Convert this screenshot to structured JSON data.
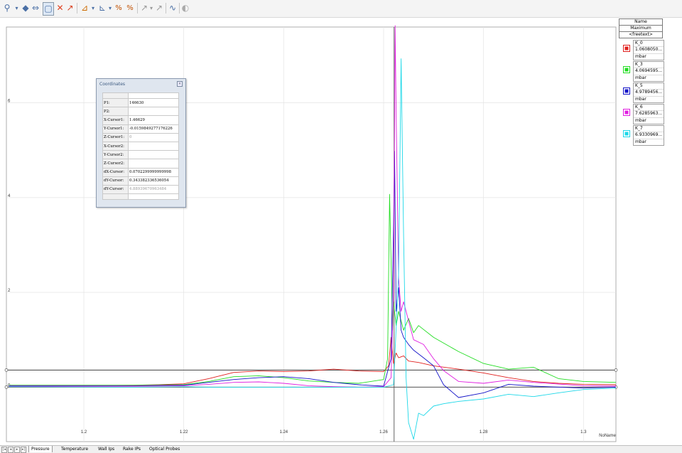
{
  "toolbar": {
    "buttons": [
      "zoom-tool",
      "pan-left",
      "pan-right",
      "zoom-box",
      "delete-cursor",
      "cursor-mode",
      "measure",
      "axis-settings",
      "scale-x",
      "scale-y",
      "fit",
      "marker",
      "marker-add",
      "smooth",
      "export"
    ]
  },
  "coordinates": {
    "title": "Coordinates",
    "rows": [
      {
        "k": "P1:",
        "v": "146630"
      },
      {
        "k": "P2:",
        "v": ""
      },
      {
        "k": "X-Cursor1:",
        "v": "1.46629"
      },
      {
        "k": "Y-Cursor1:",
        "v": "-0.0159849277176226"
      },
      {
        "k": "Z-Cursor1:",
        "v": "0"
      },
      {
        "k": "X-Cursor2:",
        "v": ""
      },
      {
        "k": "Y-Cursor2:",
        "v": ""
      },
      {
        "k": "Z-Cursor2:",
        "v": ""
      },
      {
        "k": "dX-Cursor:",
        "v": "0.0702299999999998"
      },
      {
        "k": "dY-Cursor:",
        "v": "0.343382336536054"
      },
      {
        "k": "dY-Cursor:",
        "v": "4.88939670963484"
      }
    ]
  },
  "legend": {
    "header": [
      "Name",
      "Maximum",
      "<freetext>"
    ],
    "entries": [
      {
        "name": "K_0",
        "value": "1.0608050...",
        "unit": "mbar",
        "color": "#e0201e"
      },
      {
        "name": "K_3",
        "value": "4.0694595...",
        "unit": "mbar",
        "color": "#22dd22"
      },
      {
        "name": "K_5",
        "value": "4.9789456...",
        "unit": "mbar",
        "color": "#1414c8"
      },
      {
        "name": "K_6",
        "value": "7.6285963...",
        "unit": "mbar",
        "color": "#e01ee0"
      },
      {
        "name": "K_7",
        "value": "6.9330969...",
        "unit": "mbar",
        "color": "#1ed8e8"
      }
    ]
  },
  "statusbar": {
    "tabs": [
      "Pressure",
      "Temperature",
      "Wall Ips",
      "Rake IPs",
      "Optical Probes"
    ],
    "active": "Pressure"
  },
  "chart_data": {
    "type": "line",
    "xlabel": "NoName",
    "x_ticks": [
      "1.2",
      "1.22",
      "1.24",
      "1.26",
      "1.28",
      "1.3"
    ],
    "y_ticks": [
      "0",
      "2",
      "4",
      "6"
    ],
    "xlim": [
      1.1845,
      1.3065
    ],
    "ylim": [
      -1.15,
      7.6
    ],
    "grid": true,
    "cursor_lines": [
      0.36,
      0.0
    ],
    "cursor_x": 1.2621,
    "series": [
      {
        "name": "K_0",
        "color": "#e0201e",
        "x": [
          1.185,
          1.2,
          1.21,
          1.215,
          1.22,
          1.225,
          1.23,
          1.235,
          1.24,
          1.245,
          1.25,
          1.255,
          1.26,
          1.261,
          1.2615,
          1.262,
          1.2625,
          1.263,
          1.264,
          1.265,
          1.267,
          1.27,
          1.275,
          1.28,
          1.285,
          1.29,
          1.295,
          1.3,
          1.3065
        ],
        "y": [
          0.03,
          0.03,
          0.04,
          0.05,
          0.07,
          0.18,
          0.31,
          0.34,
          0.33,
          0.34,
          0.38,
          0.34,
          0.33,
          0.45,
          1.05,
          0.5,
          0.72,
          0.62,
          0.66,
          0.55,
          0.52,
          0.45,
          0.38,
          0.3,
          0.2,
          0.12,
          0.08,
          0.06,
          0.05
        ]
      },
      {
        "name": "K_3",
        "color": "#22dd22",
        "x": [
          1.185,
          1.21,
          1.22,
          1.225,
          1.23,
          1.235,
          1.24,
          1.245,
          1.25,
          1.255,
          1.26,
          1.2608,
          1.2612,
          1.2618,
          1.262,
          1.2625,
          1.263,
          1.264,
          1.265,
          1.266,
          1.267,
          1.27,
          1.275,
          1.28,
          1.285,
          1.29,
          1.295,
          1.3,
          1.3065
        ],
        "y": [
          0.04,
          0.04,
          0.05,
          0.12,
          0.22,
          0.24,
          0.2,
          0.13,
          0.1,
          0.08,
          0.16,
          0.6,
          4.07,
          1.2,
          1.8,
          1.3,
          1.6,
          1.2,
          1.45,
          1.15,
          1.3,
          1.05,
          0.75,
          0.5,
          0.38,
          0.42,
          0.18,
          0.12,
          0.1
        ]
      },
      {
        "name": "K_5",
        "color": "#1414c8",
        "x": [
          1.185,
          1.21,
          1.22,
          1.225,
          1.23,
          1.235,
          1.24,
          1.245,
          1.25,
          1.255,
          1.26,
          1.2615,
          1.262,
          1.2622,
          1.2625,
          1.263,
          1.2635,
          1.264,
          1.265,
          1.266,
          1.268,
          1.27,
          1.272,
          1.275,
          1.28,
          1.285,
          1.29,
          1.3,
          1.3065
        ],
        "y": [
          0.03,
          0.03,
          0.04,
          0.1,
          0.16,
          0.2,
          0.22,
          0.18,
          0.1,
          0.05,
          0.02,
          0.6,
          3.4,
          4.98,
          1.6,
          2.1,
          1.2,
          1.05,
          0.9,
          0.78,
          0.62,
          0.45,
          0.05,
          -0.22,
          -0.12,
          0.06,
          0.02,
          -0.02,
          0.0
        ]
      },
      {
        "name": "K_6",
        "color": "#e01ee0",
        "x": [
          1.185,
          1.21,
          1.22,
          1.225,
          1.23,
          1.235,
          1.24,
          1.245,
          1.25,
          1.255,
          1.26,
          1.2615,
          1.262,
          1.2623,
          1.2625,
          1.263,
          1.2635,
          1.264,
          1.265,
          1.266,
          1.268,
          1.27,
          1.272,
          1.275,
          1.28,
          1.285,
          1.29,
          1.3,
          1.3065
        ],
        "y": [
          0.02,
          0.02,
          0.03,
          0.06,
          0.1,
          0.11,
          0.08,
          0.03,
          0.01,
          0.0,
          0.01,
          0.2,
          2.0,
          7.63,
          5.8,
          2.3,
          1.6,
          1.8,
          1.4,
          1.0,
          0.9,
          0.6,
          0.35,
          0.12,
          0.08,
          0.15,
          0.1,
          0.03,
          0.02
        ]
      },
      {
        "name": "K_7",
        "color": "#1ed8e8",
        "x": [
          1.185,
          1.21,
          1.22,
          1.225,
          1.23,
          1.24,
          1.25,
          1.26,
          1.262,
          1.263,
          1.2635,
          1.264,
          1.2645,
          1.265,
          1.266,
          1.267,
          1.268,
          1.27,
          1.272,
          1.275,
          1.28,
          1.285,
          1.29,
          1.295,
          1.3,
          1.3065
        ],
        "y": [
          0.01,
          0.0,
          0.01,
          0.0,
          0.0,
          0.0,
          0.0,
          0.0,
          0.05,
          2.4,
          6.93,
          3.2,
          0.2,
          -0.75,
          -1.1,
          -0.55,
          -0.6,
          -0.4,
          -0.35,
          -0.3,
          -0.25,
          -0.15,
          -0.2,
          -0.12,
          -0.05,
          -0.02
        ]
      }
    ]
  }
}
